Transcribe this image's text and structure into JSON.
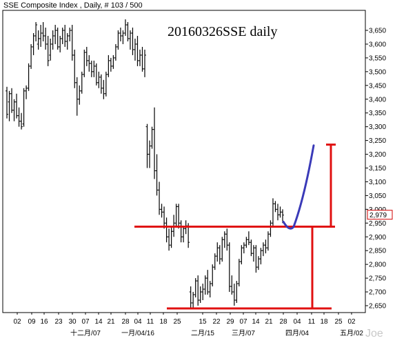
{
  "chart_data": {
    "type": "candlestick-ohlc",
    "title": "SSE Composite Index , Daily, # 103 / 500",
    "annotation": "20160326SSE daily",
    "watermark": "Joe",
    "ylim": [
      2620,
      3700
    ],
    "y_ticks": [
      2650,
      2700,
      2750,
      2800,
      2850,
      2900,
      2950,
      3000,
      3050,
      3100,
      3150,
      3200,
      3250,
      3300,
      3350,
      3400,
      3450,
      3500,
      3550,
      3600,
      3650
    ],
    "y_tick_labels": [
      "2,650",
      "2,700",
      "2,750",
      "2,800",
      "2,850",
      "2,900",
      "2,950",
      "3,000",
      "3,050",
      "3,100",
      "3,150",
      "3,200",
      "3,250",
      "3,300",
      "3,350",
      "3,400",
      "3,450",
      "3,500",
      "3,550",
      "3,600",
      "3,650"
    ],
    "current_value": 2979,
    "current_value_label": "2,979",
    "x_day_labels": [
      "02",
      "09",
      "16",
      "23",
      "30",
      "07",
      "14",
      "21",
      "28",
      "04",
      "11",
      "18",
      "25",
      "15",
      "22",
      "29",
      "07",
      "14",
      "21",
      "28",
      "04",
      "11",
      "18",
      "25",
      "02"
    ],
    "x_month_labels": [
      "十二月/07",
      "一月/04/16",
      "二月/15",
      "三月/07",
      "四月/04",
      "五月/02"
    ],
    "bars": [
      [
        3430,
        3445,
        3330,
        3345
      ],
      [
        3390,
        3430,
        3320,
        3420
      ],
      [
        3420,
        3440,
        3350,
        3360
      ],
      [
        3360,
        3400,
        3320,
        3390
      ],
      [
        3390,
        3420,
        3330,
        3340
      ],
      [
        3340,
        3370,
        3300,
        3320
      ],
      [
        3320,
        3350,
        3290,
        3300
      ],
      [
        3310,
        3440,
        3300,
        3430
      ],
      [
        3430,
        3450,
        3400,
        3440
      ],
      [
        3440,
        3530,
        3430,
        3520
      ],
      [
        3520,
        3600,
        3510,
        3590
      ],
      [
        3590,
        3640,
        3560,
        3630
      ],
      [
        3630,
        3680,
        3610,
        3670
      ],
      [
        3600,
        3650,
        3580,
        3620
      ],
      [
        3620,
        3670,
        3590,
        3640
      ],
      [
        3640,
        3680,
        3610,
        3630
      ],
      [
        3630,
        3660,
        3580,
        3600
      ],
      [
        3600,
        3630,
        3520,
        3540
      ],
      [
        3560,
        3620,
        3540,
        3600
      ],
      [
        3600,
        3650,
        3580,
        3630
      ],
      [
        3630,
        3670,
        3600,
        3650
      ],
      [
        3650,
        3660,
        3580,
        3590
      ],
      [
        3590,
        3630,
        3570,
        3620
      ],
      [
        3620,
        3660,
        3600,
        3650
      ],
      [
        3650,
        3670,
        3590,
        3610
      ],
      [
        3610,
        3640,
        3580,
        3630
      ],
      [
        3630,
        3660,
        3610,
        3650
      ],
      [
        3650,
        3670,
        3540,
        3560
      ],
      [
        3560,
        3580,
        3440,
        3460
      ],
      [
        3460,
        3480,
        3340,
        3400
      ],
      [
        3400,
        3450,
        3380,
        3430
      ],
      [
        3430,
        3500,
        3420,
        3490
      ],
      [
        3490,
        3580,
        3480,
        3570
      ],
      [
        3570,
        3590,
        3520,
        3540
      ],
      [
        3540,
        3560,
        3500,
        3530
      ],
      [
        3530,
        3540,
        3480,
        3500
      ],
      [
        3500,
        3540,
        3480,
        3520
      ],
      [
        3520,
        3530,
        3450,
        3460
      ],
      [
        3460,
        3500,
        3440,
        3480
      ],
      [
        3480,
        3490,
        3420,
        3440
      ],
      [
        3440,
        3470,
        3400,
        3420
      ],
      [
        3420,
        3500,
        3410,
        3490
      ],
      [
        3490,
        3560,
        3480,
        3540
      ],
      [
        3540,
        3550,
        3500,
        3520
      ],
      [
        3520,
        3560,
        3510,
        3550
      ],
      [
        3550,
        3600,
        3540,
        3590
      ],
      [
        3590,
        3650,
        3580,
        3640
      ],
      [
        3640,
        3660,
        3610,
        3630
      ],
      [
        3630,
        3650,
        3600,
        3640
      ],
      [
        3640,
        3690,
        3630,
        3670
      ],
      [
        3670,
        3680,
        3610,
        3620
      ],
      [
        3620,
        3650,
        3580,
        3640
      ],
      [
        3640,
        3660,
        3560,
        3580
      ],
      [
        3580,
        3620,
        3540,
        3600
      ],
      [
        3600,
        3630,
        3520,
        3540
      ],
      [
        3540,
        3580,
        3520,
        3560
      ],
      [
        3560,
        3590,
        3500,
        3510
      ],
      [
        3510,
        3580,
        3480,
        3560
      ],
      [
        3300,
        3310,
        3150,
        3200
      ],
      [
        3200,
        3250,
        3150,
        3230
      ],
      [
        3230,
        3300,
        3220,
        3290
      ],
      [
        3290,
        3370,
        3110,
        3140
      ],
      [
        3140,
        3200,
        3050,
        3070
      ],
      [
        3070,
        3100,
        2980,
        3000
      ],
      [
        3000,
        3020,
        2970,
        2990
      ],
      [
        2990,
        3010,
        2930,
        2950
      ],
      [
        2950,
        2970,
        2880,
        2900
      ],
      [
        2900,
        2930,
        2850,
        2870
      ],
      [
        2870,
        2940,
        2860,
        2920
      ],
      [
        2920,
        2980,
        2900,
        2950
      ],
      [
        2950,
        3020,
        2940,
        3010
      ],
      [
        3010,
        3020,
        2930,
        2950
      ],
      [
        2950,
        2960,
        2880,
        2900
      ],
      [
        2900,
        2940,
        2880,
        2930
      ],
      [
        2930,
        2960,
        2910,
        2940
      ],
      [
        2940,
        2950,
        2860,
        2880
      ],
      [
        2700,
        2720,
        2640,
        2660
      ],
      [
        2660,
        2700,
        2640,
        2690
      ],
      [
        2690,
        2750,
        2680,
        2740
      ],
      [
        2740,
        2760,
        2650,
        2670
      ],
      [
        2670,
        2720,
        2660,
        2700
      ],
      [
        2700,
        2730,
        2670,
        2710
      ],
      [
        2710,
        2760,
        2690,
        2750
      ],
      [
        2750,
        2780,
        2690,
        2700
      ],
      [
        2700,
        2740,
        2680,
        2730
      ],
      [
        2730,
        2800,
        2720,
        2790
      ],
      [
        2790,
        2840,
        2780,
        2830
      ],
      [
        2830,
        2880,
        2810,
        2860
      ],
      [
        2860,
        2870,
        2800,
        2820
      ],
      [
        2820,
        2900,
        2810,
        2890
      ],
      [
        2890,
        2920,
        2860,
        2910
      ],
      [
        2910,
        2930,
        2850,
        2870
      ],
      [
        2870,
        2880,
        2700,
        2720
      ],
      [
        2720,
        2760,
        2690,
        2700
      ],
      [
        2700,
        2730,
        2650,
        2670
      ],
      [
        2670,
        2740,
        2660,
        2730
      ],
      [
        2730,
        2820,
        2720,
        2810
      ],
      [
        2810,
        2870,
        2800,
        2860
      ],
      [
        2860,
        2880,
        2840,
        2870
      ],
      [
        2870,
        2900,
        2860,
        2890
      ],
      [
        2890,
        2920,
        2870,
        2880
      ],
      [
        2880,
        2890,
        2830,
        2840
      ],
      [
        2840,
        2870,
        2810,
        2860
      ],
      [
        2860,
        2870,
        2770,
        2790
      ],
      [
        2790,
        2830,
        2780,
        2820
      ],
      [
        2820,
        2860,
        2800,
        2850
      ],
      [
        2850,
        2880,
        2830,
        2870
      ],
      [
        2870,
        2890,
        2840,
        2860
      ],
      [
        2860,
        2920,
        2850,
        2910
      ],
      [
        2910,
        2960,
        2900,
        2950
      ],
      [
        2950,
        3040,
        2940,
        3020
      ],
      [
        3020,
        3030,
        2990,
        3000
      ],
      [
        3000,
        3020,
        2960,
        2980
      ],
      [
        2980,
        3010,
        2970,
        2990
      ],
      [
        2990,
        3000,
        2950,
        2979
      ]
    ],
    "support_line": 2640,
    "neckline": 2937,
    "target": 3235
  }
}
